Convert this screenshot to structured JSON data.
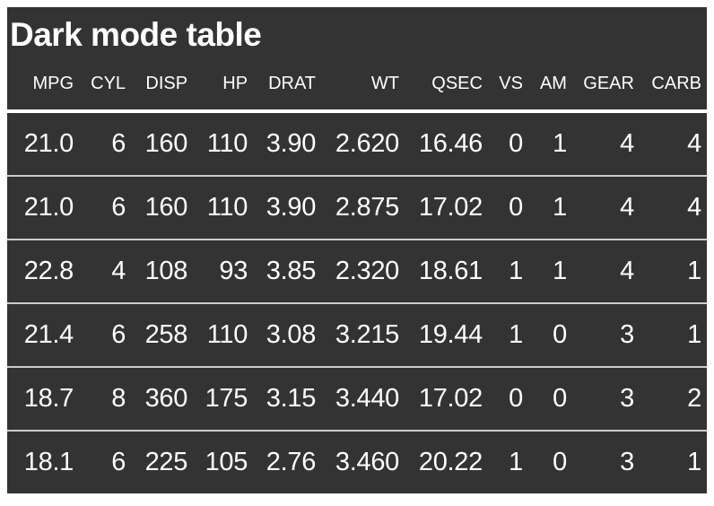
{
  "table": {
    "title": "Dark mode table",
    "columns": [
      "MPG",
      "CYL",
      "DISP",
      "HP",
      "DRAT",
      "WT",
      "QSEC",
      "VS",
      "AM",
      "GEAR",
      "CARB"
    ],
    "rows": [
      [
        "21.0",
        "6",
        "160",
        "110",
        "3.90",
        "2.620",
        "16.46",
        "0",
        "1",
        "4",
        "4"
      ],
      [
        "21.0",
        "6",
        "160",
        "110",
        "3.90",
        "2.875",
        "17.02",
        "0",
        "1",
        "4",
        "4"
      ],
      [
        "22.8",
        "4",
        "108",
        "93",
        "3.85",
        "2.320",
        "18.61",
        "1",
        "1",
        "4",
        "1"
      ],
      [
        "21.4",
        "6",
        "258",
        "110",
        "3.08",
        "3.215",
        "19.44",
        "1",
        "0",
        "3",
        "1"
      ],
      [
        "18.7",
        "8",
        "360",
        "175",
        "3.15",
        "3.440",
        "17.02",
        "0",
        "0",
        "3",
        "2"
      ],
      [
        "18.1",
        "6",
        "225",
        "105",
        "2.76",
        "3.460",
        "20.22",
        "1",
        "0",
        "3",
        "1"
      ]
    ],
    "theme": {
      "card_background": "#333333",
      "text_color": "#ffffff",
      "header_rule_color": "#ffffff",
      "row_divider_color": "#cccccc",
      "page_background": "#ffffff"
    }
  },
  "chart_data": {
    "type": "table",
    "title": "Dark mode table",
    "columns": [
      "MPG",
      "CYL",
      "DISP",
      "HP",
      "DRAT",
      "WT",
      "QSEC",
      "VS",
      "AM",
      "GEAR",
      "CARB"
    ],
    "rows": [
      [
        21.0,
        6,
        160,
        110,
        3.9,
        2.62,
        16.46,
        0,
        1,
        4,
        4
      ],
      [
        21.0,
        6,
        160,
        110,
        3.9,
        2.875,
        17.02,
        0,
        1,
        4,
        4
      ],
      [
        22.8,
        4,
        108,
        93,
        3.85,
        2.32,
        18.61,
        1,
        1,
        4,
        1
      ],
      [
        21.4,
        6,
        258,
        110,
        3.08,
        3.215,
        19.44,
        1,
        0,
        3,
        1
      ],
      [
        18.7,
        8,
        360,
        175,
        3.15,
        3.44,
        17.02,
        0,
        0,
        3,
        2
      ],
      [
        18.1,
        6,
        225,
        105,
        2.76,
        3.46,
        20.22,
        1,
        0,
        3,
        1
      ]
    ],
    "layout_hints": {
      "alignment": "right",
      "dark_theme": true,
      "title_position": "top-left"
    }
  }
}
